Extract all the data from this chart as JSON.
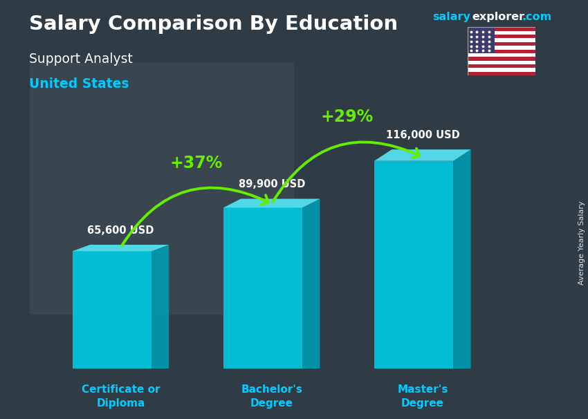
{
  "title": "Salary Comparison By Education",
  "subtitle": "Support Analyst",
  "location": "United States",
  "watermark_salary": "salary",
  "watermark_explorer": "explorer",
  "watermark_com": ".com",
  "ylabel": "Average Yearly Salary",
  "categories": [
    "Certificate or\nDiploma",
    "Bachelor's\nDegree",
    "Master's\nDegree"
  ],
  "values": [
    65600,
    89900,
    116000
  ],
  "value_labels": [
    "65,600 USD",
    "89,900 USD",
    "116,000 USD"
  ],
  "pct_changes": [
    "+37%",
    "+29%"
  ],
  "bar_face_color": "#00c8e0",
  "bar_top_color": "#55e5f5",
  "bar_side_color": "#0099b0",
  "background_color": "#3a4a55",
  "overlay_color": "#253040",
  "title_color": "#ffffff",
  "subtitle_color": "#ffffff",
  "location_color": "#00ccff",
  "category_color": "#00ccff",
  "value_color": "#ffffff",
  "pct_color": "#66ee00",
  "arrow_color": "#66ee00",
  "watermark_cyan": "#00ccff",
  "watermark_white": "#ffffff",
  "max_val": 145000,
  "figsize": [
    8.5,
    6.06
  ],
  "dpi": 100
}
